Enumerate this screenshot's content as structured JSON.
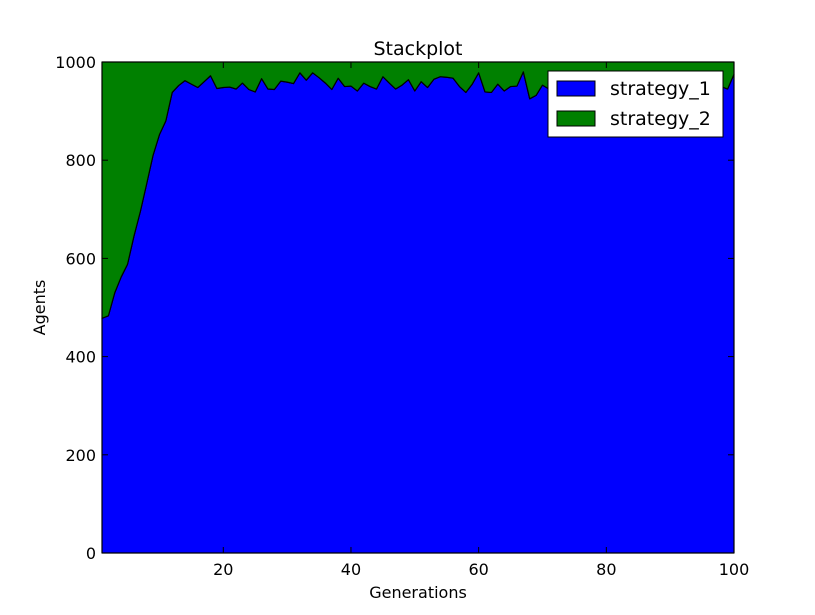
{
  "chart_data": {
    "type": "area",
    "title": "Stackplot",
    "xlabel": "Generations",
    "ylabel": "Agents",
    "xlim": [
      1,
      100
    ],
    "ylim": [
      0,
      1000
    ],
    "xticks": [
      20,
      40,
      60,
      80,
      100
    ],
    "yticks": [
      0,
      200,
      400,
      600,
      800,
      1000
    ],
    "stacked": true,
    "legend_position": "top-right",
    "grid": false,
    "x": [
      1,
      2,
      3,
      4,
      5,
      6,
      7,
      8,
      9,
      10,
      11,
      12,
      13,
      14,
      15,
      16,
      17,
      18,
      19,
      20,
      21,
      22,
      23,
      24,
      25,
      26,
      27,
      28,
      29,
      30,
      31,
      32,
      33,
      34,
      35,
      36,
      37,
      38,
      39,
      40,
      41,
      42,
      43,
      44,
      45,
      46,
      47,
      48,
      49,
      50,
      51,
      52,
      53,
      54,
      55,
      56,
      57,
      58,
      59,
      60,
      61,
      62,
      63,
      64,
      65,
      66,
      67,
      68,
      69,
      70,
      71,
      72,
      73,
      74,
      75,
      76,
      77,
      78,
      79,
      80,
      81,
      82,
      83,
      84,
      85,
      86,
      87,
      88,
      89,
      90,
      91,
      92,
      93,
      94,
      95,
      96,
      97,
      98,
      99,
      100
    ],
    "series": [
      {
        "name": "strategy_1",
        "color": "#0000ff",
        "values": [
          478,
          483,
          530,
          562,
          588,
          645,
          695,
          752,
          810,
          852,
          880,
          938,
          952,
          962,
          955,
          948,
          960,
          972,
          946,
          948,
          949,
          945,
          957,
          944,
          939,
          966,
          945,
          944,
          961,
          959,
          956,
          978,
          963,
          978,
          968,
          957,
          944,
          967,
          950,
          951,
          941,
          957,
          950,
          945,
          970,
          957,
          945,
          953,
          964,
          941,
          960,
          948,
          965,
          970,
          969,
          967,
          950,
          938,
          955,
          978,
          939,
          938,
          955,
          941,
          950,
          951,
          980,
          925,
          932,
          953,
          945,
          950,
          948,
          955,
          940,
          946,
          952,
          952,
          945,
          950,
          950,
          945,
          948,
          945,
          950,
          948,
          945,
          952,
          948,
          950,
          945,
          950,
          948,
          952,
          950,
          948,
          955,
          950,
          945,
          975
        ]
      },
      {
        "name": "strategy_2",
        "color": "#008000",
        "values": [
          522,
          517,
          470,
          438,
          412,
          355,
          305,
          248,
          190,
          148,
          120,
          62,
          48,
          38,
          45,
          52,
          40,
          28,
          54,
          52,
          51,
          55,
          43,
          56,
          61,
          34,
          55,
          56,
          39,
          41,
          44,
          22,
          37,
          22,
          32,
          43,
          56,
          33,
          50,
          49,
          59,
          43,
          50,
          55,
          30,
          43,
          55,
          47,
          36,
          59,
          40,
          52,
          35,
          30,
          31,
          33,
          50,
          62,
          45,
          22,
          61,
          62,
          45,
          59,
          50,
          49,
          20,
          75,
          68,
          47,
          55,
          50,
          52,
          45,
          60,
          54,
          48,
          48,
          55,
          50,
          50,
          55,
          52,
          55,
          50,
          52,
          55,
          48,
          52,
          50,
          55,
          50,
          52,
          48,
          50,
          52,
          45,
          50,
          55,
          25
        ]
      }
    ]
  }
}
